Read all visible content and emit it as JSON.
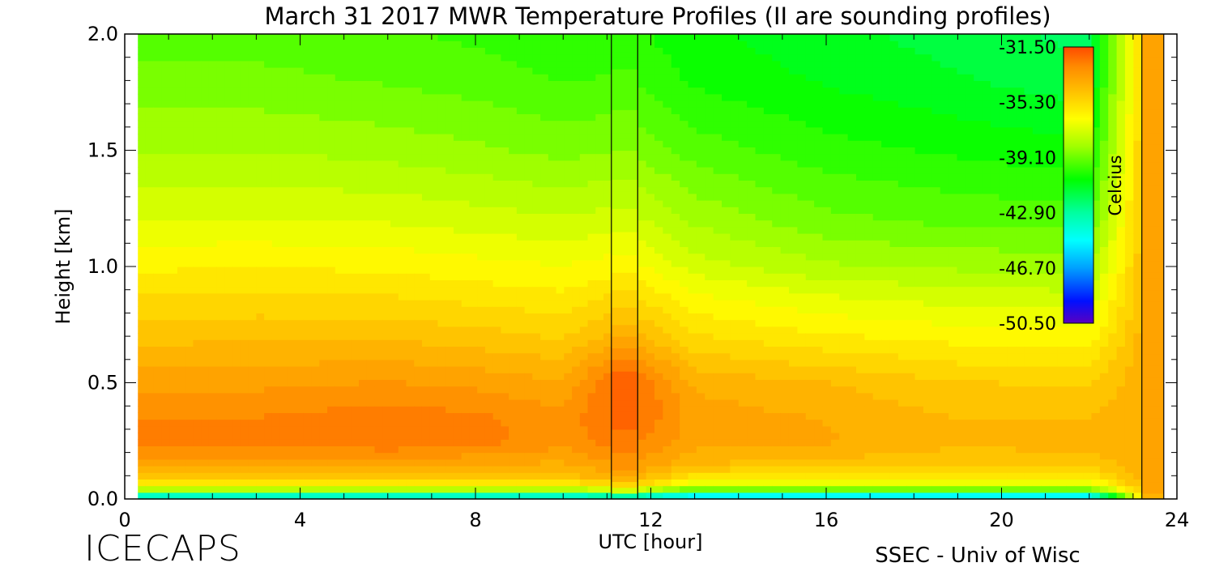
{
  "chart_data": {
    "type": "heatmap",
    "title": "March 31 2017 MWR Temperature Profiles (II are sounding profiles)",
    "xlabel": "UTC [hour]",
    "ylabel": "Height [km]",
    "xlim": [
      0,
      24
    ],
    "ylim": [
      0.0,
      2.0
    ],
    "x_ticks": [
      0,
      4,
      8,
      12,
      16,
      20,
      24
    ],
    "y_ticks": [
      0.0,
      0.5,
      1.0,
      1.5,
      2.0
    ],
    "x_tick_labels": [
      "0",
      "4",
      "8",
      "12",
      "16",
      "20",
      "24"
    ],
    "y_tick_labels": [
      "0.0",
      "0.5",
      "1.0",
      "1.5",
      "2.0"
    ],
    "data_x_range": [
      0.3,
      23.2
    ],
    "sounding_profiles": [
      {
        "x_start": 11.1,
        "x_end": 11.7
      },
      {
        "x_start": 23.2,
        "x_end": 23.7
      }
    ],
    "colorbar": {
      "label": "Celcius",
      "min": -50.5,
      "max": -31.5,
      "tick_labels": [
        "-31.50",
        "-35.30",
        "-39.10",
        "-42.90",
        "-46.70",
        "-50.50"
      ],
      "tick_values": [
        -31.5,
        -35.3,
        -39.1,
        -42.9,
        -46.7,
        -50.5
      ]
    },
    "profile_samples": {
      "height_km": [
        0.0,
        0.03,
        0.08,
        0.15,
        0.25,
        0.35,
        0.5,
        0.7,
        0.9,
        1.0,
        1.2,
        1.5,
        1.8,
        2.0
      ],
      "times_utc": [
        0,
        3,
        6,
        8,
        10,
        11.4,
        13,
        16,
        19,
        22,
        23.45,
        24
      ],
      "temperature_c": [
        [
          -48,
          -39,
          -35,
          -33.6,
          -32.6,
          -32.8,
          -33.6,
          -34.6,
          -35.6,
          -36.1,
          -37.0,
          -38.1,
          -39.0,
          -39.4
        ],
        [
          -48,
          -39,
          -35,
          -33.6,
          -32.6,
          -32.8,
          -33.5,
          -34.5,
          -35.5,
          -36.0,
          -37.0,
          -38.1,
          -39.0,
          -39.4
        ],
        [
          -48,
          -39,
          -35,
          -33.7,
          -32.3,
          -32.5,
          -33.3,
          -34.5,
          -35.6,
          -36.1,
          -37.1,
          -38.3,
          -39.2,
          -39.6
        ],
        [
          -48,
          -39,
          -35,
          -33.8,
          -32.6,
          -32.7,
          -33.5,
          -34.7,
          -35.8,
          -36.3,
          -37.3,
          -38.5,
          -39.4,
          -39.8
        ],
        [
          -48,
          -39,
          -35,
          -34.0,
          -33.1,
          -33.2,
          -33.8,
          -35.0,
          -36.0,
          -36.5,
          -37.5,
          -38.8,
          -39.7,
          -40.1
        ],
        [
          -47,
          -38,
          -34,
          -33.2,
          -32.5,
          -32.0,
          -31.8,
          -34.0,
          -35.5,
          -36.2,
          -37.3,
          -38.6,
          -39.6,
          -40.0
        ],
        [
          -49,
          -40,
          -36,
          -34.4,
          -33.6,
          -33.6,
          -34.0,
          -35.4,
          -36.6,
          -37.3,
          -38.2,
          -39.4,
          -40.3,
          -40.6
        ],
        [
          -49,
          -40,
          -36,
          -34.6,
          -33.8,
          -33.9,
          -34.4,
          -35.9,
          -37.2,
          -38.0,
          -39.0,
          -40.0,
          -40.8,
          -41.1
        ],
        [
          -49,
          -40,
          -36,
          -34.9,
          -34.2,
          -34.4,
          -34.9,
          -36.2,
          -37.5,
          -38.2,
          -39.3,
          -40.3,
          -41.2,
          -41.5
        ],
        [
          -49,
          -40,
          -36,
          -34.8,
          -34.1,
          -34.4,
          -35.0,
          -36.3,
          -37.6,
          -38.3,
          -39.4,
          -40.6,
          -41.6,
          -42.0
        ],
        [
          -34,
          -33.8,
          -33.8,
          -33.8,
          -33.8,
          -33.8,
          -33.8,
          -33.8,
          -33.8,
          -33.8,
          -33.8,
          -33.8,
          -33.8,
          -33.8
        ],
        [
          -34,
          -33.8,
          -33.8,
          -33.8,
          -33.8,
          -33.8,
          -33.8,
          -33.8,
          -33.8,
          -33.8,
          -33.8,
          -33.8,
          -33.8,
          -33.8
        ]
      ]
    }
  },
  "footer": {
    "left_logo": "ICECAPS",
    "right_credit": "SSEC - Univ of Wisc"
  }
}
